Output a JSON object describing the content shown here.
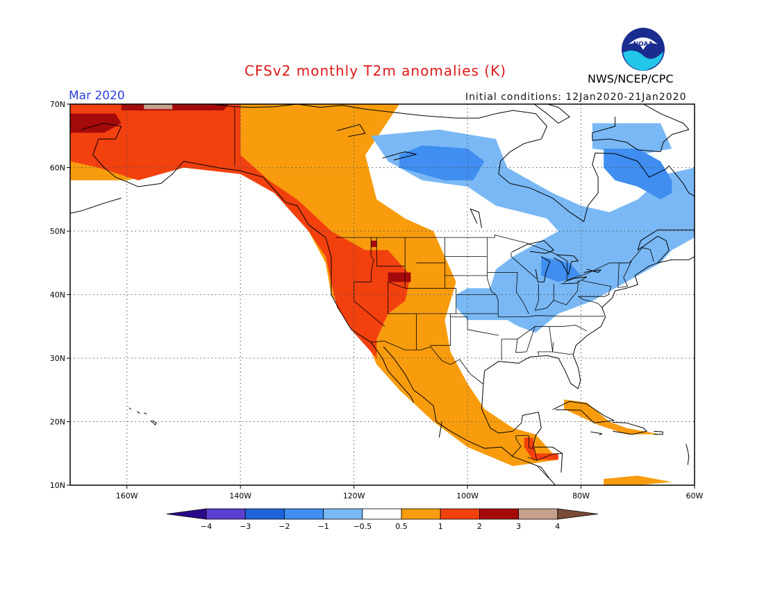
{
  "title": "CFSv2 monthly T2m anomalies (K)",
  "valid_month": "Mar 2020",
  "initial_conditions": "Initial conditions: 12Jan2020-21Jan2020",
  "agency": "NWS/NCEP/CPC",
  "logo": {
    "icon": "noaa-logo-icon",
    "text": "NOAA"
  },
  "map": {
    "projection": "lat-lon",
    "lon_range": [
      -170,
      -60
    ],
    "lat_range": [
      10,
      70
    ],
    "grid": true,
    "lon_ticks": [
      {
        "value": -160,
        "label": "160W"
      },
      {
        "value": -140,
        "label": "140W"
      },
      {
        "value": -120,
        "label": "120W"
      },
      {
        "value": -100,
        "label": "100W"
      },
      {
        "value": -80,
        "label": "80W"
      },
      {
        "value": -60,
        "label": "60W"
      }
    ],
    "lat_ticks": [
      {
        "value": 10,
        "label": "10N"
      },
      {
        "value": 20,
        "label": "20N"
      },
      {
        "value": 30,
        "label": "30N"
      },
      {
        "value": 40,
        "label": "40N"
      },
      {
        "value": 50,
        "label": "50N"
      },
      {
        "value": 60,
        "label": "60N"
      },
      {
        "value": 70,
        "label": "70N"
      }
    ]
  },
  "colorbar": {
    "labels": [
      "−4",
      "−3",
      "−2",
      "−1",
      "−0.5",
      "0.5",
      "1",
      "2",
      "3",
      "4"
    ],
    "colors": [
      "#2a0a8a",
      "#5a3fd0",
      "#1f63d8",
      "#3f8ef0",
      "#7ab8f5",
      "#ffffff",
      "#f89c0e",
      "#f2400f",
      "#a50a0a",
      "#c7a08c",
      "#7a4b38"
    ]
  },
  "anomaly_regions": [
    {
      "class": "0.5-1",
      "color": "#f89c0e",
      "points": [
        [
          -170,
          70
        ],
        [
          -112,
          70
        ],
        [
          -118,
          62
        ],
        [
          -116,
          55
        ],
        [
          -111,
          52
        ],
        [
          -106,
          50
        ],
        [
          -104,
          46
        ],
        [
          -102,
          42
        ],
        [
          -104,
          36
        ],
        [
          -103,
          31
        ],
        [
          -100,
          26
        ],
        [
          -97,
          22
        ],
        [
          -92,
          19
        ],
        [
          -88,
          18
        ],
        [
          -86,
          16
        ],
        [
          -84,
          14
        ],
        [
          -92,
          13
        ],
        [
          -100,
          16
        ],
        [
          -106,
          20
        ],
        [
          -112,
          25
        ],
        [
          -116,
          29
        ],
        [
          -118,
          33
        ],
        [
          -121,
          36
        ],
        [
          -124,
          40
        ],
        [
          -125,
          45
        ],
        [
          -128,
          50
        ],
        [
          -134,
          56
        ],
        [
          -140,
          59
        ],
        [
          -150,
          60
        ],
        [
          -160,
          58
        ],
        [
          -170,
          58
        ]
      ]
    },
    {
      "class": "0.5-1",
      "color": "#f89c0e",
      "points": [
        [
          -76,
          11
        ],
        [
          -70,
          11.5
        ],
        [
          -64,
          10.5
        ],
        [
          -70,
          10
        ],
        [
          -76,
          10
        ]
      ]
    },
    {
      "class": "0.5-1",
      "color": "#f89c0e",
      "points": [
        [
          -83,
          23.5
        ],
        [
          -79,
          23
        ],
        [
          -75,
          20
        ],
        [
          -72,
          19
        ],
        [
          -66,
          18
        ],
        [
          -72,
          18
        ],
        [
          -77,
          19.5
        ],
        [
          -83,
          22
        ]
      ]
    },
    {
      "class": "1-2",
      "color": "#f2400f",
      "points": [
        [
          -170,
          70
        ],
        [
          -140,
          70
        ],
        [
          -140,
          62
        ],
        [
          -135,
          58
        ],
        [
          -130,
          55
        ],
        [
          -124,
          50
        ],
        [
          -118,
          47
        ],
        [
          -114,
          47
        ],
        [
          -112,
          45
        ],
        [
          -110,
          43
        ],
        [
          -111,
          39
        ],
        [
          -114,
          37
        ],
        [
          -116,
          33
        ],
        [
          -116,
          30
        ],
        [
          -118,
          32
        ],
        [
          -120,
          34
        ],
        [
          -123,
          38
        ],
        [
          -124,
          42
        ],
        [
          -125,
          46
        ],
        [
          -128,
          50
        ],
        [
          -134,
          56
        ],
        [
          -140,
          59
        ],
        [
          -150,
          60
        ],
        [
          -158,
          58
        ],
        [
          -165,
          60
        ],
        [
          -170,
          61
        ]
      ]
    },
    {
      "class": "1-2",
      "color": "#f2400f",
      "points": [
        [
          -90,
          17.5
        ],
        [
          -88.5,
          17.5
        ],
        [
          -88,
          15
        ],
        [
          -84,
          15
        ],
        [
          -84,
          14
        ],
        [
          -88.5,
          14
        ],
        [
          -90,
          16
        ]
      ]
    },
    {
      "class": "2-3",
      "color": "#a50a0a",
      "points": [
        [
          -170,
          68.5
        ],
        [
          -162,
          68.5
        ],
        [
          -161,
          67
        ],
        [
          -164,
          65.5
        ],
        [
          -170,
          65.5
        ]
      ]
    },
    {
      "class": "2-3",
      "color": "#a50a0a",
      "points": [
        [
          -161,
          70
        ],
        [
          -142,
          70
        ],
        [
          -143,
          69
        ],
        [
          -161,
          69
        ]
      ]
    },
    {
      "class": "2-3",
      "color": "#a50a0a",
      "points": [
        [
          -114,
          43.5
        ],
        [
          -110,
          43.5
        ],
        [
          -110,
          42
        ],
        [
          -114,
          42
        ]
      ]
    },
    {
      "class": "2-3",
      "color": "#a50a0a",
      "points": [
        [
          -117,
          48.5
        ],
        [
          -116,
          48.5
        ],
        [
          -116,
          47.5
        ],
        [
          -117,
          47.5
        ]
      ]
    },
    {
      "class": "3-4",
      "color": "#c7a08c",
      "points": [
        [
          -157,
          70
        ],
        [
          -152,
          70
        ],
        [
          -152,
          69.2
        ],
        [
          -157,
          69.2
        ]
      ]
    },
    {
      "class": "-1--0.5",
      "color": "#7ab8f5",
      "points": [
        [
          -117,
          65
        ],
        [
          -105,
          66
        ],
        [
          -95,
          64.5
        ],
        [
          -93,
          60
        ],
        [
          -85,
          56
        ],
        [
          -80,
          54
        ],
        [
          -75,
          53
        ],
        [
          -70,
          55
        ],
        [
          -65,
          59
        ],
        [
          -60,
          60
        ],
        [
          -60,
          49
        ],
        [
          -64,
          47
        ],
        [
          -66,
          45
        ],
        [
          -70,
          43
        ],
        [
          -74,
          41
        ],
        [
          -78,
          39
        ],
        [
          -84,
          37
        ],
        [
          -88,
          34
        ],
        [
          -91,
          35
        ],
        [
          -93,
          36
        ],
        [
          -100,
          36
        ],
        [
          -102,
          38
        ],
        [
          -102,
          40
        ],
        [
          -100,
          41
        ],
        [
          -96,
          41
        ],
        [
          -95,
          44
        ],
        [
          -92,
          46
        ],
        [
          -88,
          48
        ],
        [
          -84,
          50
        ],
        [
          -86,
          52
        ],
        [
          -95,
          54
        ],
        [
          -100,
          57
        ],
        [
          -108,
          58
        ],
        [
          -114,
          61
        ]
      ]
    },
    {
      "class": "-1--0.5",
      "color": "#7ab8f5",
      "points": [
        [
          -78,
          67
        ],
        [
          -66,
          67
        ],
        [
          -64,
          63
        ],
        [
          -70,
          62
        ],
        [
          -78,
          63
        ]
      ]
    },
    {
      "class": "-2--1",
      "color": "#3f8ef0",
      "points": [
        [
          -112,
          62
        ],
        [
          -108,
          63.5
        ],
        [
          -100,
          63
        ],
        [
          -97,
          61
        ],
        [
          -99,
          58
        ],
        [
          -104,
          58
        ],
        [
          -108,
          59
        ],
        [
          -112,
          60
        ]
      ]
    },
    {
      "class": "-2--1",
      "color": "#3f8ef0",
      "points": [
        [
          -76,
          63
        ],
        [
          -70,
          63
        ],
        [
          -66,
          61
        ],
        [
          -64,
          58
        ],
        [
          -64,
          56
        ],
        [
          -66,
          55
        ],
        [
          -70,
          57
        ],
        [
          -74,
          58
        ],
        [
          -76,
          60
        ]
      ]
    },
    {
      "class": "-2--1",
      "color": "#3f8ef0",
      "points": [
        [
          -87,
          46
        ],
        [
          -82,
          45
        ],
        [
          -80,
          43
        ],
        [
          -84,
          42
        ],
        [
          -87,
          43
        ]
      ]
    }
  ]
}
